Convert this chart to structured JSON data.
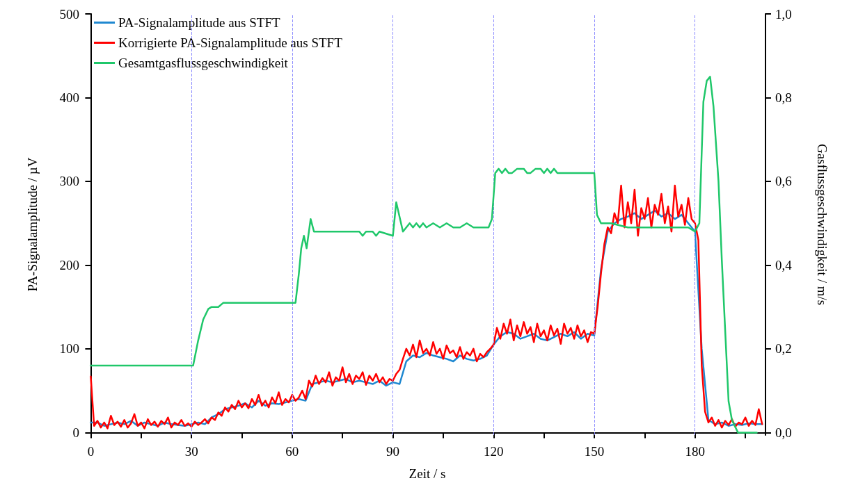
{
  "chart_data": {
    "type": "line",
    "xlabel": "Zeit / s",
    "ylabel": "PA-Signalamplitude / µV",
    "y2label": "Gasflussgeschwindigkeit / m/s",
    "xlim": [
      -0.5,
      201
    ],
    "xticks": [
      0,
      {
        "value": 15,
        "label": null
      },
      30,
      {
        "value": 45,
        "label": null
      },
      60,
      {
        "value": 75,
        "label": null
      },
      90,
      {
        "value": 105,
        "label": null
      },
      120,
      {
        "value": 135,
        "label": null
      },
      150,
      {
        "value": 165,
        "label": null
      },
      180,
      {
        "value": 195,
        "label": null
      }
    ],
    "ylim": [
      -3,
      500
    ],
    "yticks": [
      0,
      100,
      200,
      300,
      400,
      500
    ],
    "y2lim": [
      -0.006,
      1.0
    ],
    "y2ticks": [
      {
        "value": 0,
        "label": "0,0"
      },
      {
        "value": 0.2,
        "label": "0,2"
      },
      {
        "value": 0.4,
        "label": "0,4"
      },
      {
        "value": 0.6,
        "label": "0,6"
      },
      {
        "value": 0.8,
        "label": "0,8"
      },
      {
        "value": 1.0,
        "label": "1,0"
      }
    ],
    "grid": false,
    "legend": "top left",
    "marker": "none",
    "line_style": "solid",
    "ref_lines": [
      {
        "axis": "x",
        "value": 30,
        "color": "#8c8cff",
        "line_style": "dashed"
      },
      {
        "axis": "x",
        "value": 60,
        "color": "#8c8cff",
        "line_style": "dashed"
      },
      {
        "axis": "x",
        "value": 90,
        "color": "#8c8cff",
        "line_style": "dashed"
      },
      {
        "axis": "x",
        "value": 120,
        "color": "#8c8cff",
        "line_style": "dashed"
      },
      {
        "axis": "x",
        "value": 150,
        "color": "#8c8cff",
        "line_style": "dashed"
      },
      {
        "axis": "x",
        "value": 180,
        "color": "#8c8cff",
        "line_style": "dashed"
      }
    ],
    "series": [
      {
        "name": "PA-Signalamplitude aus STFT",
        "color": "#1f88d0",
        "x": [
          0,
          2,
          4,
          6,
          8,
          10,
          12,
          14,
          16,
          18,
          20,
          22,
          24,
          26,
          28,
          30,
          32,
          34,
          36,
          38,
          40,
          42,
          44,
          46,
          48,
          50,
          52,
          54,
          56,
          58,
          60,
          62,
          64,
          66,
          68,
          70,
          72,
          74,
          76,
          78,
          80,
          82,
          84,
          86,
          88,
          90,
          92,
          94,
          96,
          98,
          100,
          102,
          104,
          106,
          108,
          110,
          112,
          114,
          116,
          118,
          120,
          122,
          124,
          126,
          128,
          130,
          132,
          134,
          136,
          138,
          140,
          142,
          144,
          146,
          148,
          150,
          152,
          154,
          156,
          158,
          160,
          162,
          164,
          166,
          168,
          170,
          172,
          174,
          176,
          178,
          180,
          182,
          184,
          186,
          188,
          190,
          192,
          194,
          196,
          198,
          200
        ],
        "values": [
          12,
          12,
          8,
          10,
          12,
          10,
          14,
          8,
          12,
          10,
          8,
          12,
          10,
          9,
          8,
          10,
          12,
          10,
          18,
          22,
          28,
          30,
          32,
          35,
          30,
          38,
          32,
          35,
          34,
          36,
          38,
          40,
          38,
          58,
          60,
          62,
          60,
          62,
          64,
          60,
          62,
          60,
          58,
          62,
          56,
          60,
          58,
          85,
          92,
          90,
          95,
          92,
          90,
          88,
          85,
          92,
          88,
          86,
          88,
          92,
          105,
          115,
          120,
          118,
          112,
          115,
          118,
          112,
          110,
          114,
          118,
          115,
          120,
          112,
          118,
          116,
          195,
          240,
          250,
          255,
          258,
          262,
          255,
          260,
          265,
          258,
          262,
          255,
          260,
          250,
          240,
          100,
          15,
          10,
          12,
          8,
          10,
          9,
          11,
          10,
          10
        ]
      },
      {
        "name": "Korrigierte PA-Signalamplitude aus STFT",
        "color": "#ff0000",
        "x": [
          0,
          1,
          2,
          3,
          4,
          5,
          6,
          7,
          8,
          9,
          10,
          11,
          12,
          13,
          14,
          15,
          16,
          17,
          18,
          19,
          20,
          21,
          22,
          23,
          24,
          25,
          26,
          27,
          28,
          29,
          30,
          31,
          32,
          33,
          34,
          35,
          36,
          37,
          38,
          39,
          40,
          41,
          42,
          43,
          44,
          45,
          46,
          47,
          48,
          49,
          50,
          51,
          52,
          53,
          54,
          55,
          56,
          57,
          58,
          59,
          60,
          61,
          62,
          63,
          64,
          65,
          66,
          67,
          68,
          69,
          70,
          71,
          72,
          73,
          74,
          75,
          76,
          77,
          78,
          79,
          80,
          81,
          82,
          83,
          84,
          85,
          86,
          87,
          88,
          89,
          90,
          91,
          92,
          93,
          94,
          95,
          96,
          97,
          98,
          99,
          100,
          101,
          102,
          103,
          104,
          105,
          106,
          107,
          108,
          109,
          110,
          111,
          112,
          113,
          114,
          115,
          116,
          117,
          118,
          119,
          120,
          121,
          122,
          123,
          124,
          125,
          126,
          127,
          128,
          129,
          130,
          131,
          132,
          133,
          134,
          135,
          136,
          137,
          138,
          139,
          140,
          141,
          142,
          143,
          144,
          145,
          146,
          147,
          148,
          149,
          150,
          151,
          152,
          153,
          154,
          155,
          156,
          157,
          158,
          159,
          160,
          161,
          162,
          163,
          164,
          165,
          166,
          167,
          168,
          169,
          170,
          171,
          172,
          173,
          174,
          175,
          176,
          177,
          178,
          179,
          180,
          181,
          182,
          183,
          184,
          185,
          186,
          187,
          188,
          189,
          190,
          191,
          192,
          193,
          194,
          195,
          196,
          197,
          198,
          199,
          200
        ],
        "values": [
          67,
          8,
          14,
          6,
          12,
          5,
          20,
          9,
          13,
          7,
          15,
          6,
          11,
          22,
          8,
          12,
          5,
          16,
          9,
          13,
          7,
          14,
          10,
          18,
          6,
          12,
          9,
          15,
          8,
          11,
          7,
          13,
          9,
          12,
          16,
          11,
          18,
          15,
          24,
          20,
          30,
          25,
          33,
          28,
          38,
          30,
          35,
          29,
          40,
          33,
          45,
          32,
          38,
          30,
          42,
          35,
          48,
          33,
          40,
          36,
          45,
          38,
          42,
          50,
          40,
          62,
          55,
          68,
          58,
          65,
          60,
          72,
          56,
          66,
          62,
          78,
          60,
          70,
          58,
          68,
          64,
          72,
          57,
          68,
          62,
          70,
          60,
          66,
          58,
          64,
          62,
          70,
          75,
          88,
          100,
          92,
          105,
          90,
          110,
          95,
          100,
          92,
          108,
          94,
          100,
          88,
          104,
          95,
          98,
          90,
          102,
          88,
          96,
          92,
          100,
          85,
          94,
          90,
          96,
          100,
          105,
          125,
          112,
          130,
          118,
          135,
          110,
          128,
          115,
          132,
          118,
          126,
          108,
          130,
          115,
          122,
          110,
          128,
          116,
          124,
          106,
          130,
          118,
          125,
          112,
          128,
          115,
          122,
          108,
          120,
          118,
          150,
          190,
          225,
          245,
          238,
          262,
          250,
          295,
          245,
          275,
          250,
          290,
          235,
          268,
          255,
          280,
          245,
          272,
          260,
          285,
          250,
          270,
          240,
          295,
          258,
          272,
          248,
          280,
          255,
          250,
          230,
          80,
          25,
          12,
          18,
          8,
          15,
          6,
          14,
          9,
          16,
          7,
          12,
          10,
          18,
          8,
          14,
          9,
          28,
          10
        ]
      },
      {
        "name": "Gesamtgasflussgeschwindigkeit",
        "color": "#1fc76a",
        "axis": "y2",
        "x": [
          0,
          30.5,
          32,
          33.5,
          35,
          36,
          38,
          39.5,
          61,
          62,
          62.7,
          63.5,
          64.3,
          65.5,
          66.5,
          80,
          81,
          82,
          84,
          85,
          86,
          90,
          91,
          93,
          95,
          96,
          97,
          98,
          99,
          100,
          102,
          104,
          106,
          108,
          110,
          112,
          114,
          116,
          118.5,
          119.5,
          120.5,
          121.5,
          122.5,
          123.5,
          124.5,
          125.5,
          127,
          129,
          130,
          131,
          132.5,
          134,
          135,
          136,
          137,
          138,
          139,
          150,
          150.8,
          152,
          155,
          160,
          170,
          178,
          180,
          181.3,
          182.5,
          183.5,
          184.5,
          185.5,
          187,
          188,
          190,
          191,
          192.8,
          198.4
        ],
        "values": [
          0.16,
          0.16,
          0.22,
          0.27,
          0.295,
          0.3,
          0.3,
          0.31,
          0.31,
          0.38,
          0.44,
          0.47,
          0.44,
          0.51,
          0.48,
          0.48,
          0.47,
          0.48,
          0.48,
          0.47,
          0.48,
          0.47,
          0.55,
          0.48,
          0.5,
          0.49,
          0.5,
          0.49,
          0.5,
          0.49,
          0.5,
          0.49,
          0.5,
          0.49,
          0.49,
          0.5,
          0.49,
          0.49,
          0.49,
          0.51,
          0.62,
          0.63,
          0.62,
          0.63,
          0.62,
          0.62,
          0.63,
          0.63,
          0.62,
          0.62,
          0.63,
          0.63,
          0.62,
          0.63,
          0.62,
          0.63,
          0.62,
          0.62,
          0.52,
          0.5,
          0.5,
          0.49,
          0.49,
          0.49,
          0.48,
          0.5,
          0.79,
          0.84,
          0.85,
          0.78,
          0.6,
          0.41,
          0.075,
          0.03,
          0.0,
          0.0
        ]
      }
    ]
  }
}
